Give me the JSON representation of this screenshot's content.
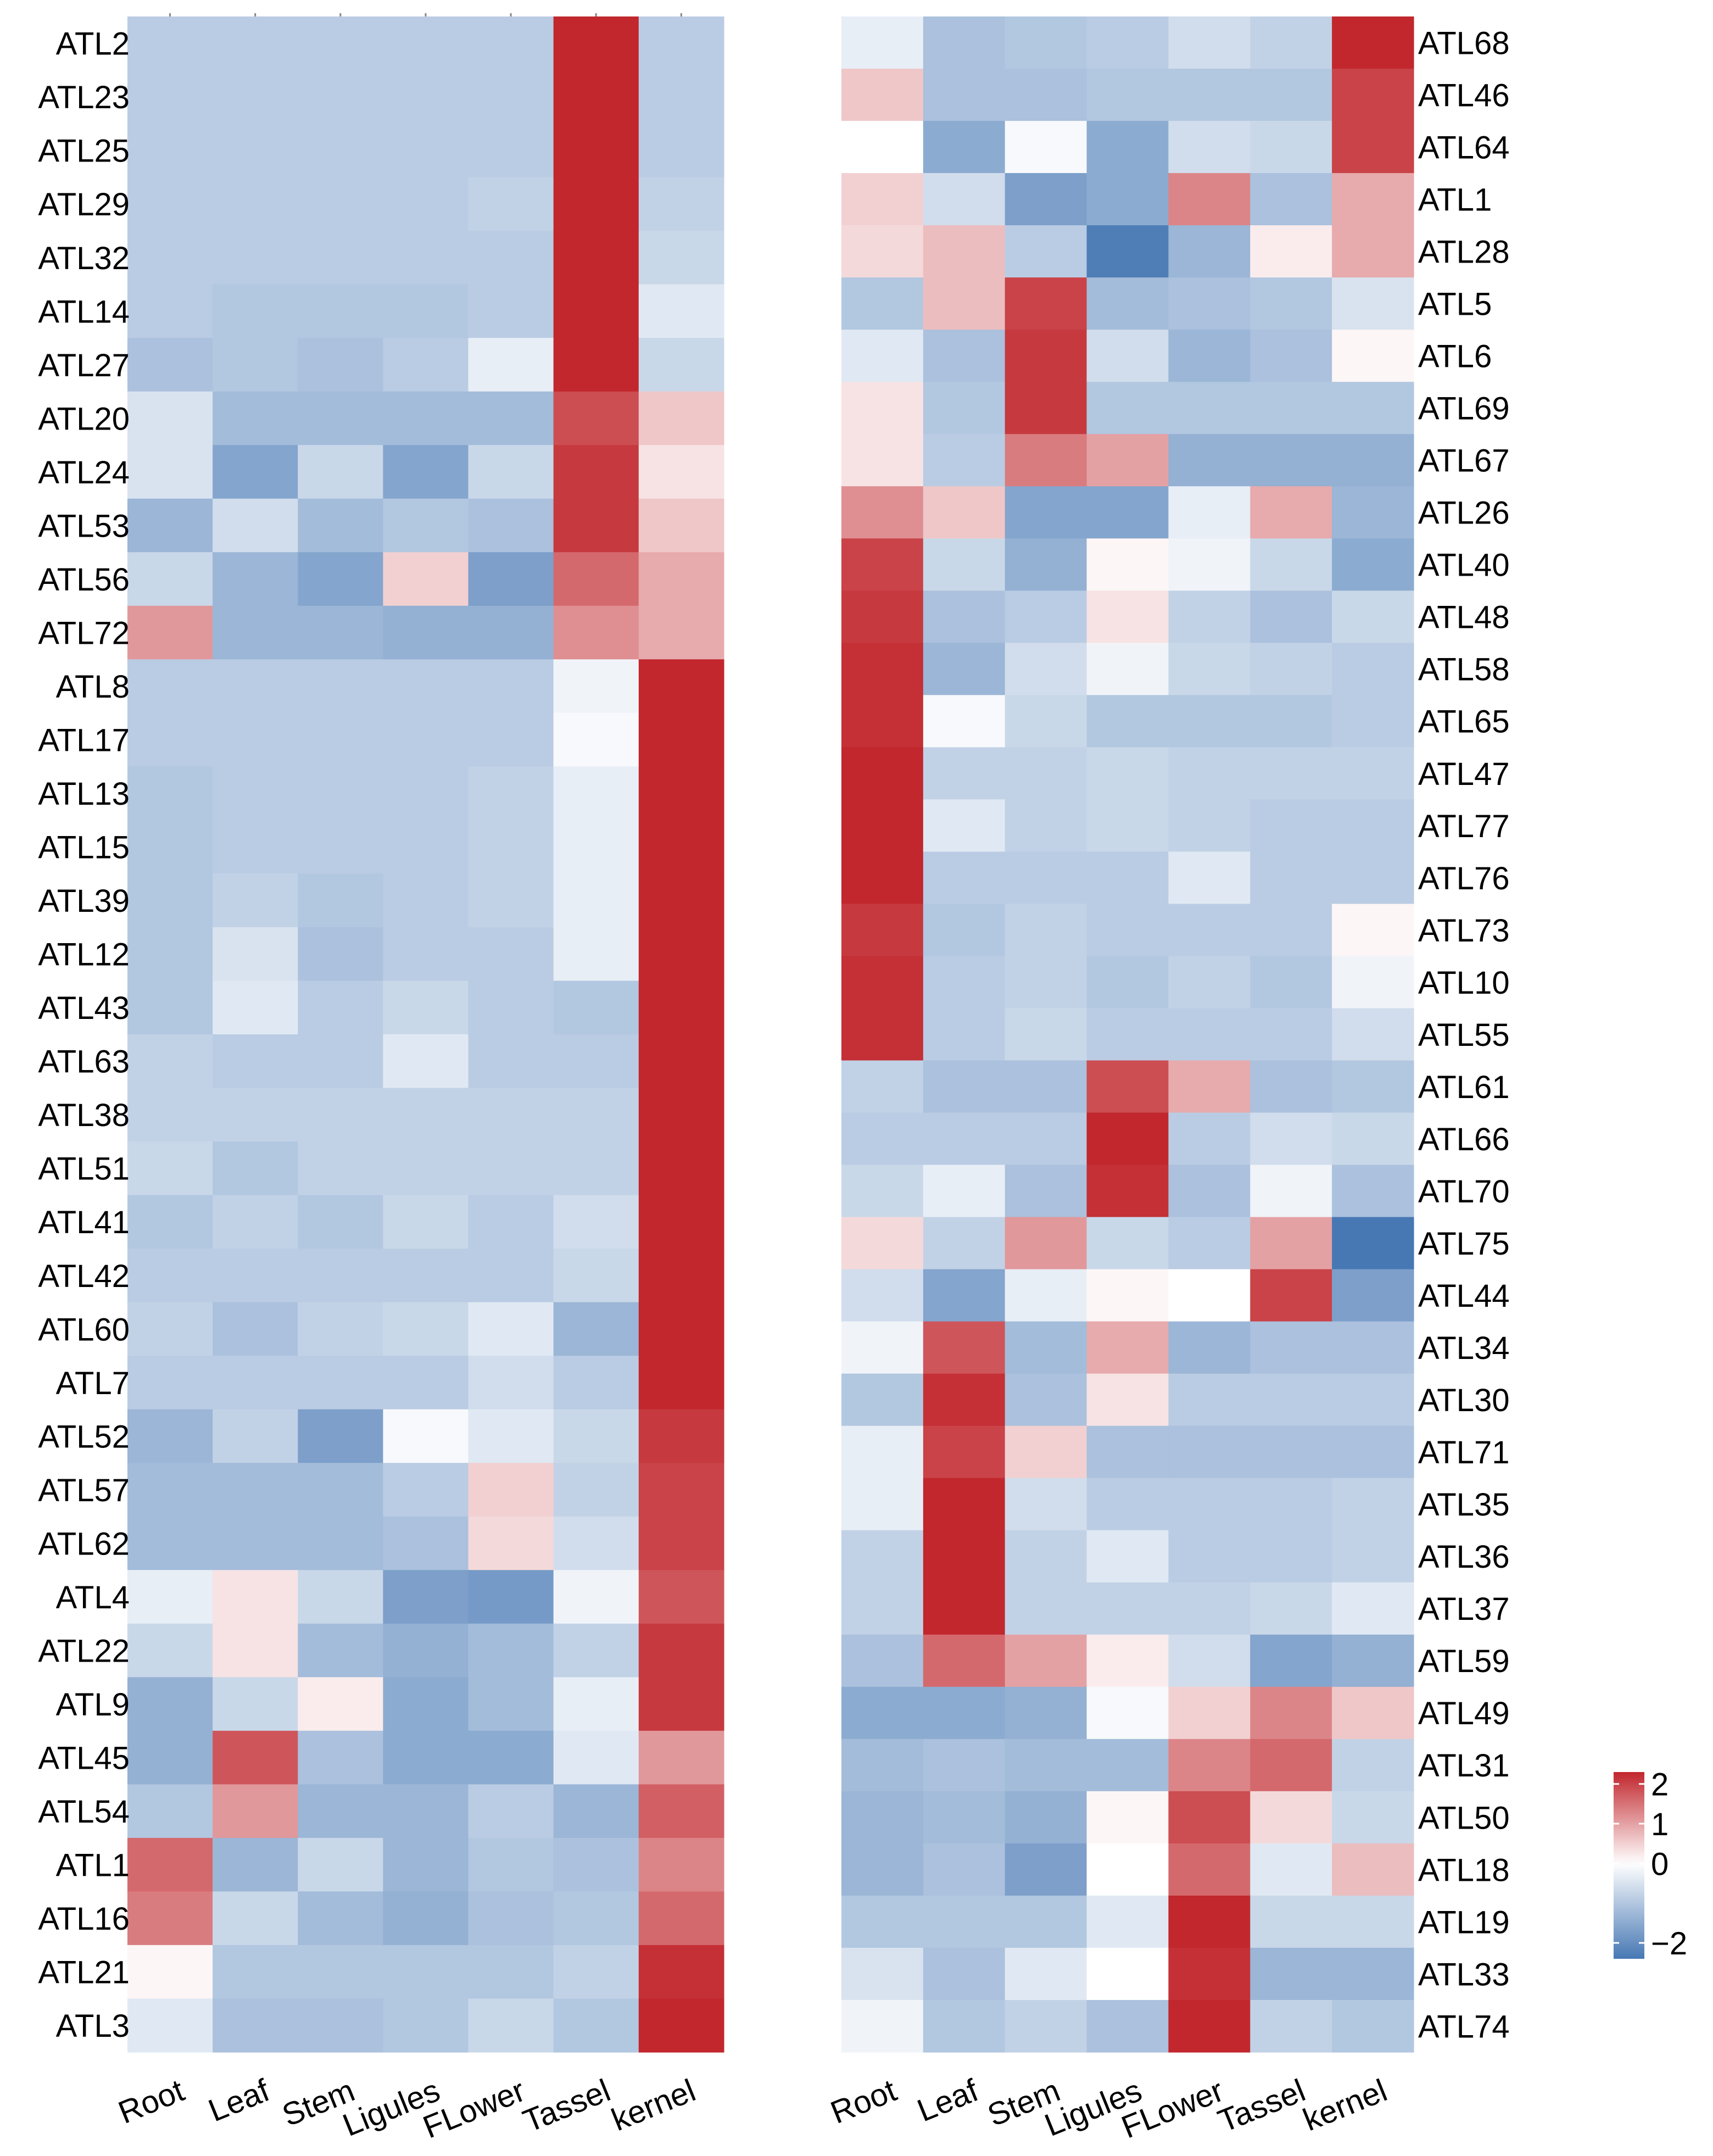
{
  "chart_data": [
    {
      "type": "heatmap",
      "id": "left",
      "xlabels": [
        "Root",
        "Leaf",
        "Stem",
        "Ligules",
        "FLower",
        "Tassel",
        "kernel"
      ],
      "rows": [
        {
          "gene": "ATL2",
          "values": [
            -0.9,
            -0.9,
            -0.9,
            -0.9,
            -0.9,
            2.3,
            -0.9
          ]
        },
        {
          "gene": "ATL23",
          "values": [
            -0.9,
            -0.9,
            -0.9,
            -0.9,
            -0.9,
            2.3,
            -0.9
          ]
        },
        {
          "gene": "ATL25",
          "values": [
            -0.9,
            -0.9,
            -0.9,
            -0.9,
            -0.9,
            2.3,
            -0.9
          ]
        },
        {
          "gene": "ATL29",
          "values": [
            -0.9,
            -0.9,
            -0.9,
            -0.9,
            -0.8,
            2.3,
            -0.8
          ]
        },
        {
          "gene": "ATL32",
          "values": [
            -0.9,
            -0.9,
            -0.9,
            -0.9,
            -0.9,
            2.3,
            -0.7
          ]
        },
        {
          "gene": "ATL14",
          "values": [
            -0.9,
            -1.0,
            -1.0,
            -1.0,
            -0.9,
            2.3,
            -0.4
          ]
        },
        {
          "gene": "ATL27",
          "values": [
            -1.1,
            -1.0,
            -1.1,
            -0.9,
            -0.3,
            2.3,
            -0.7
          ]
        },
        {
          "gene": "ATL20",
          "values": [
            -0.5,
            -1.2,
            -1.2,
            -1.2,
            -1.2,
            1.9,
            0.6
          ]
        },
        {
          "gene": "ATL24",
          "values": [
            -0.5,
            -1.6,
            -0.7,
            -1.6,
            -0.7,
            2.1,
            0.3
          ]
        },
        {
          "gene": "ATL53",
          "values": [
            -1.3,
            -0.6,
            -1.2,
            -1.0,
            -1.1,
            2.1,
            0.6
          ]
        },
        {
          "gene": "ATL56",
          "values": [
            -0.7,
            -1.3,
            -1.6,
            0.5,
            -1.7,
            1.6,
            0.9
          ]
        },
        {
          "gene": "ATL72",
          "values": [
            1.1,
            -1.3,
            -1.3,
            -1.4,
            -1.4,
            1.2,
            0.9
          ]
        },
        {
          "gene": "ATL8",
          "values": [
            -0.9,
            -0.9,
            -0.9,
            -0.9,
            -0.9,
            -0.2,
            2.3
          ]
        },
        {
          "gene": "ATL17",
          "values": [
            -0.9,
            -0.9,
            -0.9,
            -0.9,
            -0.9,
            -0.1,
            2.3
          ]
        },
        {
          "gene": "ATL13",
          "values": [
            -1.0,
            -0.9,
            -0.9,
            -0.9,
            -0.8,
            -0.3,
            2.3
          ]
        },
        {
          "gene": "ATL15",
          "values": [
            -1.0,
            -0.9,
            -0.9,
            -0.9,
            -0.8,
            -0.3,
            2.3
          ]
        },
        {
          "gene": "ATL39",
          "values": [
            -1.0,
            -0.8,
            -1.0,
            -0.9,
            -0.8,
            -0.3,
            2.3
          ]
        },
        {
          "gene": "ATL12",
          "values": [
            -1.0,
            -0.5,
            -1.1,
            -0.9,
            -0.9,
            -0.3,
            2.3
          ]
        },
        {
          "gene": "ATL43",
          "values": [
            -1.0,
            -0.4,
            -0.9,
            -0.7,
            -0.9,
            -1.0,
            2.3
          ]
        },
        {
          "gene": "ATL63",
          "values": [
            -0.8,
            -0.9,
            -0.9,
            -0.4,
            -0.9,
            -0.9,
            2.3
          ]
        },
        {
          "gene": "ATL38",
          "values": [
            -0.8,
            -0.8,
            -0.8,
            -0.8,
            -0.8,
            -0.8,
            2.3
          ]
        },
        {
          "gene": "ATL51",
          "values": [
            -0.7,
            -1.0,
            -0.8,
            -0.8,
            -0.8,
            -0.8,
            2.3
          ]
        },
        {
          "gene": "ATL41",
          "values": [
            -1.0,
            -0.8,
            -1.0,
            -0.7,
            -0.9,
            -0.6,
            2.3
          ]
        },
        {
          "gene": "ATL42",
          "values": [
            -0.9,
            -0.9,
            -0.9,
            -0.9,
            -0.9,
            -0.7,
            2.3
          ]
        },
        {
          "gene": "ATL60",
          "values": [
            -0.8,
            -1.1,
            -0.8,
            -0.7,
            -0.4,
            -1.3,
            2.3
          ]
        },
        {
          "gene": "ATL7",
          "values": [
            -0.9,
            -0.9,
            -0.9,
            -0.9,
            -0.6,
            -0.9,
            2.3
          ]
        },
        {
          "gene": "ATL52",
          "values": [
            -1.3,
            -0.8,
            -1.7,
            -0.1,
            -0.4,
            -0.7,
            2.1
          ]
        },
        {
          "gene": "ATL57",
          "values": [
            -1.2,
            -1.2,
            -1.2,
            -0.9,
            0.5,
            -0.8,
            2.0
          ]
        },
        {
          "gene": "ATL62",
          "values": [
            -1.2,
            -1.2,
            -1.2,
            -1.1,
            0.4,
            -0.6,
            2.0
          ]
        },
        {
          "gene": "ATL4",
          "values": [
            -0.3,
            0.3,
            -0.7,
            -1.7,
            -1.8,
            -0.2,
            1.8
          ]
        },
        {
          "gene": "ATL22",
          "values": [
            -0.7,
            0.3,
            -1.2,
            -1.4,
            -1.2,
            -0.8,
            2.1
          ]
        },
        {
          "gene": "ATL9",
          "values": [
            -1.4,
            -0.7,
            0.2,
            -1.5,
            -1.2,
            -0.3,
            2.1
          ]
        },
        {
          "gene": "ATL45",
          "values": [
            -1.4,
            1.8,
            -1.1,
            -1.5,
            -1.5,
            -0.4,
            1.1
          ]
        },
        {
          "gene": "ATL54",
          "values": [
            -1.0,
            1.1,
            -1.3,
            -1.3,
            -0.9,
            -1.3,
            1.7
          ]
        },
        {
          "gene": "ATL1",
          "values": [
            1.6,
            -1.3,
            -0.7,
            -1.3,
            -1.0,
            -1.1,
            1.3
          ]
        },
        {
          "gene": "ATL16",
          "values": [
            1.4,
            -0.7,
            -1.2,
            -1.4,
            -1.1,
            -1.0,
            1.6
          ]
        },
        {
          "gene": "ATL21",
          "values": [
            0.1,
            -1.0,
            -1.0,
            -1.0,
            -1.0,
            -0.8,
            2.2
          ]
        },
        {
          "gene": "ATL3",
          "values": [
            -0.4,
            -1.1,
            -1.1,
            -1.0,
            -0.7,
            -1.0,
            2.3
          ]
        }
      ]
    },
    {
      "type": "heatmap",
      "id": "right",
      "xlabels": [
        "Root",
        "Leaf",
        "Stem",
        "Ligules",
        "FLower",
        "Tassel",
        "kernel"
      ],
      "rows": [
        {
          "gene": "ATL68",
          "values": [
            -0.3,
            -1.1,
            -1.0,
            -0.9,
            -0.6,
            -0.8,
            2.3
          ]
        },
        {
          "gene": "ATL46",
          "values": [
            0.6,
            -1.1,
            -1.1,
            -1.0,
            -1.0,
            -1.0,
            2.0
          ]
        },
        {
          "gene": "ATL64",
          "values": [
            0.0,
            -1.5,
            -0.1,
            -1.5,
            -0.6,
            -0.7,
            2.0
          ]
        },
        {
          "gene": "ATL1",
          "values": [
            0.5,
            -0.6,
            -1.7,
            -1.5,
            1.3,
            -1.1,
            0.9
          ]
        },
        {
          "gene": "ATL28",
          "values": [
            0.4,
            0.7,
            -0.9,
            -2.3,
            -1.3,
            0.2,
            0.9
          ]
        },
        {
          "gene": "ATL5",
          "values": [
            -1.0,
            0.7,
            2.0,
            -1.2,
            -1.1,
            -1.0,
            -0.5
          ]
        },
        {
          "gene": "ATL6",
          "values": [
            -0.4,
            -1.1,
            2.1,
            -0.6,
            -1.3,
            -1.1,
            0.1
          ]
        },
        {
          "gene": "ATL69",
          "values": [
            0.3,
            -1.0,
            2.1,
            -1.0,
            -1.0,
            -1.0,
            -1.0
          ]
        },
        {
          "gene": "ATL67",
          "values": [
            0.3,
            -0.9,
            1.4,
            1.0,
            -1.4,
            -1.4,
            -1.4
          ]
        },
        {
          "gene": "ATL26",
          "values": [
            1.2,
            0.6,
            -1.6,
            -1.6,
            -0.3,
            0.9,
            -1.3
          ]
        },
        {
          "gene": "ATL40",
          "values": [
            2.0,
            -0.7,
            -1.4,
            0.1,
            -0.2,
            -0.7,
            -1.5
          ]
        },
        {
          "gene": "ATL48",
          "values": [
            2.1,
            -1.1,
            -0.9,
            0.3,
            -0.8,
            -1.1,
            -0.7
          ]
        },
        {
          "gene": "ATL58",
          "values": [
            2.2,
            -1.3,
            -0.6,
            -0.2,
            -0.7,
            -0.8,
            -0.9
          ]
        },
        {
          "gene": "ATL65",
          "values": [
            2.2,
            -0.1,
            -0.7,
            -1.0,
            -1.0,
            -1.0,
            -0.9
          ]
        },
        {
          "gene": "ATL47",
          "values": [
            2.3,
            -0.8,
            -0.8,
            -0.7,
            -0.8,
            -0.8,
            -0.8
          ]
        },
        {
          "gene": "ATL77",
          "values": [
            2.3,
            -0.4,
            -0.8,
            -0.7,
            -0.8,
            -0.9,
            -0.9
          ]
        },
        {
          "gene": "ATL76",
          "values": [
            2.3,
            -0.9,
            -0.9,
            -0.9,
            -0.4,
            -0.9,
            -0.9
          ]
        },
        {
          "gene": "ATL73",
          "values": [
            2.1,
            -1.0,
            -0.8,
            -0.9,
            -0.9,
            -0.9,
            0.1
          ]
        },
        {
          "gene": "ATL10",
          "values": [
            2.2,
            -0.9,
            -0.8,
            -1.0,
            -0.8,
            -1.0,
            -0.2
          ]
        },
        {
          "gene": "ATL55",
          "values": [
            2.2,
            -0.9,
            -0.7,
            -0.9,
            -0.9,
            -0.9,
            -0.6
          ]
        },
        {
          "gene": "ATL61",
          "values": [
            -0.8,
            -1.1,
            -1.1,
            1.9,
            0.9,
            -1.1,
            -1.0
          ]
        },
        {
          "gene": "ATL66",
          "values": [
            -0.9,
            -0.9,
            -0.9,
            2.3,
            -0.9,
            -0.6,
            -0.7
          ]
        },
        {
          "gene": "ATL70",
          "values": [
            -0.7,
            -0.3,
            -1.1,
            2.2,
            -1.1,
            -0.2,
            -1.1
          ]
        },
        {
          "gene": "ATL75",
          "values": [
            0.4,
            -0.8,
            1.1,
            -0.7,
            -0.9,
            1.0,
            -2.4
          ]
        },
        {
          "gene": "ATL44",
          "values": [
            -0.6,
            -1.6,
            -0.3,
            0.1,
            0.0,
            2.0,
            -1.7
          ]
        },
        {
          "gene": "ATL34",
          "values": [
            -0.2,
            1.8,
            -1.2,
            0.9,
            -1.3,
            -1.1,
            -1.1
          ]
        },
        {
          "gene": "ATL30",
          "values": [
            -1.0,
            2.2,
            -1.1,
            0.3,
            -0.9,
            -0.9,
            -0.9
          ]
        },
        {
          "gene": "ATL71",
          "values": [
            -0.3,
            2.0,
            0.5,
            -1.1,
            -1.1,
            -1.1,
            -1.1
          ]
        },
        {
          "gene": "ATL35",
          "values": [
            -0.3,
            2.3,
            -0.6,
            -0.9,
            -0.9,
            -0.9,
            -0.8
          ]
        },
        {
          "gene": "ATL36",
          "values": [
            -0.8,
            2.3,
            -0.8,
            -0.4,
            -0.9,
            -0.9,
            -0.8
          ]
        },
        {
          "gene": "ATL37",
          "values": [
            -0.8,
            2.3,
            -0.8,
            -0.8,
            -0.8,
            -0.7,
            -0.4
          ]
        },
        {
          "gene": "ATL59",
          "values": [
            -1.1,
            1.6,
            1.0,
            0.2,
            -0.6,
            -1.6,
            -1.4
          ]
        },
        {
          "gene": "ATL49",
          "values": [
            -1.5,
            -1.5,
            -1.4,
            -0.1,
            0.5,
            1.3,
            0.6
          ]
        },
        {
          "gene": "ATL31",
          "values": [
            -1.2,
            -1.1,
            -1.2,
            -1.2,
            1.3,
            1.6,
            -0.8
          ]
        },
        {
          "gene": "ATL50",
          "values": [
            -1.3,
            -1.2,
            -1.4,
            0.1,
            1.9,
            0.4,
            -0.7
          ]
        },
        {
          "gene": "ATL18",
          "values": [
            -1.3,
            -1.1,
            -1.7,
            0.0,
            1.6,
            -0.4,
            0.7
          ]
        },
        {
          "gene": "ATL19",
          "values": [
            -1.0,
            -1.0,
            -1.0,
            -0.4,
            2.3,
            -0.7,
            -0.7
          ]
        },
        {
          "gene": "ATL33",
          "values": [
            -0.5,
            -1.1,
            -0.4,
            0.0,
            2.2,
            -1.3,
            -1.3
          ]
        },
        {
          "gene": "ATL74",
          "values": [
            -0.2,
            -1.0,
            -0.8,
            -1.1,
            2.3,
            -0.8,
            -1.0
          ]
        }
      ]
    }
  ],
  "legend": {
    "ticks": [
      2,
      1,
      0,
      -2
    ],
    "tick_labels": [
      "2",
      "1",
      "0",
      "−2"
    ],
    "range": [
      -2.4,
      2.3
    ]
  },
  "colors": {
    "low": "#4778b4",
    "mid": "#ffffff",
    "high": "#c1272d"
  }
}
